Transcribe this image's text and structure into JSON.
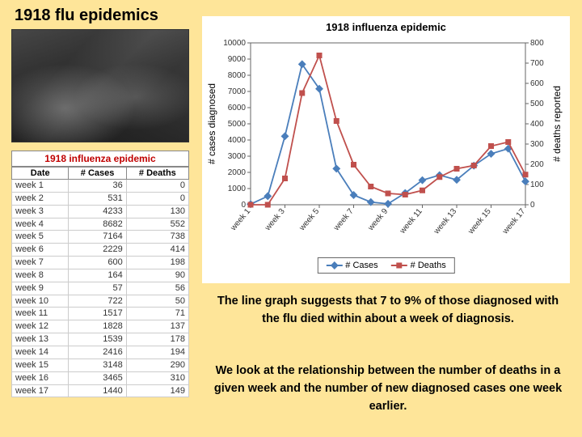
{
  "title": "1918 flu epidemics",
  "table": {
    "caption": "1918 influenza epidemic",
    "headers": [
      "Date",
      "# Cases",
      "# Deaths"
    ],
    "rows": [
      [
        "week 1",
        36,
        0
      ],
      [
        "week 2",
        531,
        0
      ],
      [
        "week 3",
        4233,
        130
      ],
      [
        "week 4",
        8682,
        552
      ],
      [
        "week 5",
        7164,
        738
      ],
      [
        "week 6",
        2229,
        414
      ],
      [
        "week 7",
        600,
        198
      ],
      [
        "week 8",
        164,
        90
      ],
      [
        "week 9",
        57,
        56
      ],
      [
        "week 10",
        722,
        50
      ],
      [
        "week 11",
        1517,
        71
      ],
      [
        "week 12",
        1828,
        137
      ],
      [
        "week 13",
        1539,
        178
      ],
      [
        "week 14",
        2416,
        194
      ],
      [
        "week 15",
        3148,
        290
      ],
      [
        "week 16",
        3465,
        310
      ],
      [
        "week 17",
        1440,
        149
      ]
    ]
  },
  "chart": {
    "title": "1918 influenza epidemic",
    "type": "line",
    "x_categories": [
      "week 1",
      "week 3",
      "week 5",
      "week 7",
      "week 9",
      "week 11",
      "week 13",
      "week 15",
      "week 17"
    ],
    "series": [
      {
        "name": "# Cases",
        "color": "#4a7ebb",
        "marker": "diamond",
        "axis": "left",
        "values": [
          36,
          531,
          4233,
          8682,
          7164,
          2229,
          600,
          164,
          57,
          722,
          1517,
          1828,
          1539,
          2416,
          3148,
          3465,
          1440
        ]
      },
      {
        "name": "# Deaths",
        "color": "#c0504d",
        "marker": "square",
        "axis": "right",
        "values": [
          0,
          0,
          130,
          552,
          738,
          414,
          198,
          90,
          56,
          50,
          71,
          137,
          178,
          194,
          290,
          310,
          149
        ]
      }
    ],
    "y_left": {
      "label": "# cases diagnosed",
      "min": 0,
      "max": 10000,
      "step": 1000
    },
    "y_right": {
      "label": "# deaths reported",
      "min": 0,
      "max": 800,
      "step": 100
    },
    "plot_bg": "#ffffff",
    "grid_color": "#bfbfbf",
    "label_fontsize": 11,
    "title_fontsize": 13,
    "legend": {
      "position": "bottom",
      "items": [
        "# Cases",
        "# Deaths"
      ]
    }
  },
  "paragraphs": {
    "p1": "The line graph suggests that 7 to 9% of those diagnosed with the flu died within about a week of diagnosis.",
    "p2": "We look at the relationship between the number of deaths in a given week and the number of new diagnosed cases one week earlier."
  }
}
